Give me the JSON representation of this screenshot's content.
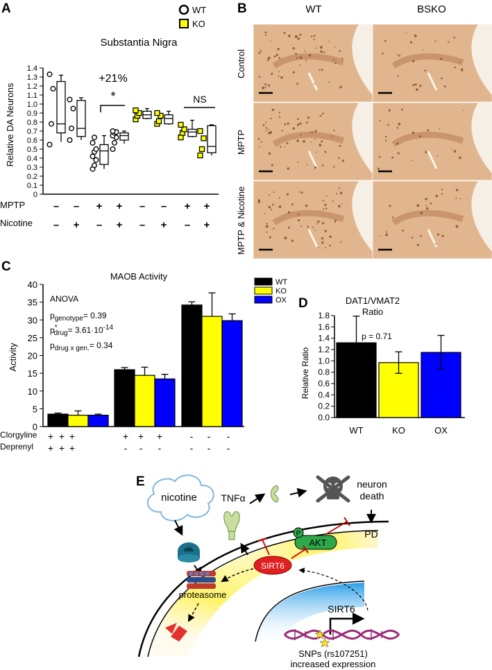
{
  "panels": {
    "a": "A",
    "b": "B",
    "c": "C",
    "d": "D",
    "e": "E"
  },
  "chart_data": [
    {
      "type": "box",
      "id": "A",
      "title": "Substantia Nigra",
      "ylabel": "Relative DA Neurons",
      "ylim": [
        0,
        1.4
      ],
      "yticks": [
        "0",
        "0.1",
        "0.2",
        "0.3",
        "0.4",
        "0.5",
        "0.6",
        "0.7",
        "0.8",
        "0.9",
        "1.0",
        "1.1",
        "1.2",
        "1.3",
        "1.4"
      ],
      "legend": [
        {
          "name": "WT",
          "marker": "open-circle"
        },
        {
          "name": "KO",
          "marker": "yellow-square"
        }
      ],
      "groups": [
        {
          "genotype": "WT",
          "mptp": "–",
          "nicotine": "–",
          "points": [
            0.55,
            0.78,
            1.17,
            1.33
          ],
          "box": {
            "min": 0.58,
            "q1": 0.68,
            "median": 0.78,
            "q3": 1.25,
            "max": 1.32
          }
        },
        {
          "genotype": "WT",
          "mptp": "–",
          "nicotine": "+",
          "points": [
            0.6,
            0.73,
            0.95,
            1.05
          ],
          "box": {
            "min": 0.6,
            "q1": 0.64,
            "median": 0.73,
            "q3": 1.04,
            "max": 1.07
          }
        },
        {
          "genotype": "WT",
          "mptp": "+",
          "nicotine": "–",
          "points": [
            0.28,
            0.32,
            0.38,
            0.42,
            0.47,
            0.5,
            0.57,
            0.63
          ],
          "box": {
            "min": 0.28,
            "q1": 0.33,
            "median": 0.48,
            "q3": 0.55,
            "max": 0.65
          }
        },
        {
          "genotype": "WT",
          "mptp": "+",
          "nicotine": "+",
          "points": [
            0.5,
            0.57,
            0.63,
            0.65,
            0.68,
            0.69,
            0.7
          ],
          "box": {
            "min": 0.56,
            "q1": 0.6,
            "median": 0.65,
            "q3": 0.68,
            "max": 0.7
          }
        },
        {
          "genotype": "KO",
          "mptp": "–",
          "nicotine": "–",
          "points": [
            0.83,
            0.87,
            0.9,
            0.93
          ],
          "box": {
            "min": 0.83,
            "q1": 0.84,
            "median": 0.88,
            "q3": 0.92,
            "max": 0.95
          }
        },
        {
          "genotype": "KO",
          "mptp": "–",
          "nicotine": "+",
          "points": [
            0.78,
            0.81,
            0.87,
            0.9
          ],
          "box": {
            "min": 0.77,
            "q1": 0.78,
            "median": 0.84,
            "q3": 0.88,
            "max": 0.92
          }
        },
        {
          "genotype": "KO",
          "mptp": "+",
          "nicotine": "–",
          "points": [
            0.63,
            0.68,
            0.72,
            0.77
          ],
          "box": {
            "min": 0.63,
            "q1": 0.64,
            "median": 0.69,
            "q3": 0.72,
            "max": 0.82
          }
        },
        {
          "genotype": "KO",
          "mptp": "+",
          "nicotine": "+",
          "points": [
            0.43,
            0.5,
            0.62,
            0.7
          ],
          "box": {
            "min": 0.43,
            "q1": 0.46,
            "median": 0.53,
            "q3": 0.76,
            "max": 0.77
          }
        }
      ],
      "row_labels": [
        "MPTP",
        "Nicotine"
      ],
      "annotations": [
        "+21%",
        "*",
        "NS"
      ]
    },
    {
      "type": "bar",
      "id": "C",
      "title": "MAOB Activity",
      "ylabel": "Activity",
      "ylim": [
        0,
        40
      ],
      "yticks": [
        "0",
        "5",
        "10",
        "15",
        "20",
        "25",
        "30",
        "35",
        "40"
      ],
      "series": [
        {
          "name": "WT",
          "color": "#000000",
          "values": [
            3.5,
            16.0,
            34.2
          ],
          "errors": [
            0.3,
            0.6,
            0.9
          ]
        },
        {
          "name": "KO",
          "color": "#ffff00",
          "values": [
            3.2,
            14.4,
            31.0
          ],
          "errors": [
            1.2,
            2.3,
            6.6
          ]
        },
        {
          "name": "OX",
          "color": "#0000ff",
          "values": [
            3.2,
            13.4,
            29.8
          ],
          "errors": [
            0.3,
            1.3,
            1.9
          ]
        }
      ],
      "row_labels": [
        "Clorgyline",
        "Deprenyl"
      ],
      "conditions": [
        [
          "+",
          "+"
        ],
        [
          "+",
          "-"
        ],
        [
          "-",
          "-"
        ]
      ],
      "stats": {
        "header": "ANOVA",
        "genotype": {
          "p": "p",
          "sub": "genotype",
          "value": "= 0.39"
        },
        "drug": {
          "p": "p",
          "sup": "*",
          "sub": "drug",
          "value": "= 3.61·10",
          "exp": "-14"
        },
        "interaction": {
          "p": "p",
          "sub": "drug x gen.",
          "value": "= 0.34"
        }
      }
    },
    {
      "type": "bar",
      "id": "D",
      "title": "DAT1/VMAT2",
      "title2": "Ratio",
      "ylabel": "Relative Ratio",
      "ylim": [
        0,
        1.8
      ],
      "yticks": [
        "0.0",
        "0.2",
        "0.4",
        "0.6",
        "0.8",
        "1.0",
        "1.2",
        "1.4",
        "1.6",
        "1.8"
      ],
      "categories": [
        "WT",
        "KO",
        "OX"
      ],
      "colors": [
        "#000000",
        "#ffff00",
        "#0000ff"
      ],
      "values": [
        1.32,
        0.97,
        1.15
      ],
      "errors": [
        0.47,
        0.19,
        0.3
      ],
      "annotation": "p = 0.71"
    }
  ],
  "micrographs": {
    "columns": [
      "WT",
      "BSKO"
    ],
    "rows": [
      "Control",
      "MPTP",
      "MPTP & Nicotine"
    ]
  },
  "diagram": {
    "nicotine": "nicotine",
    "tnf": "TNFα",
    "neuron_death_1": "neuron",
    "neuron_death_2": "death",
    "pd": "PD",
    "akt": "AKT",
    "p": "P",
    "sirt6": "SIRT6",
    "proteasome": "proteasome",
    "sirt6_gene": "SIRT6",
    "snp_1": "SNPs (rs107251)",
    "snp_2": "increased expression"
  }
}
